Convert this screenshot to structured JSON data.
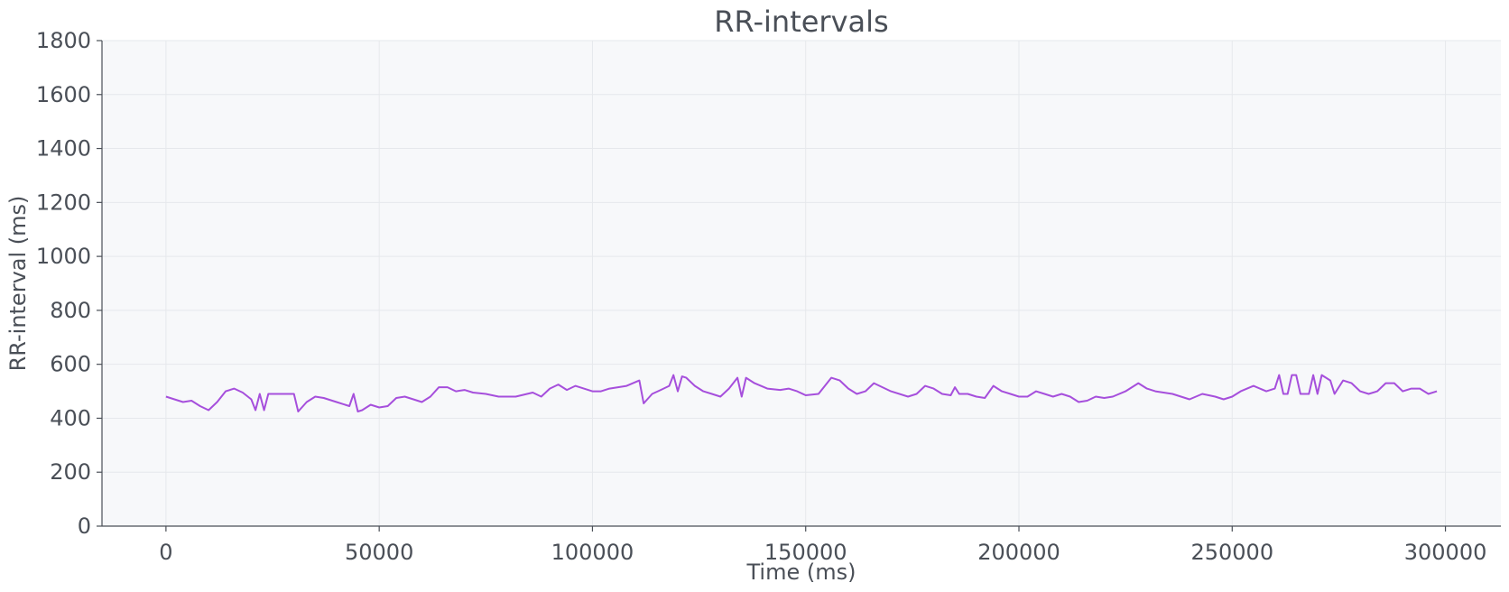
{
  "chart_data": {
    "type": "line",
    "title": "RR-intervals",
    "xlabel": "Time (ms)",
    "ylabel": "RR-interval (ms)",
    "xlim": [
      -15000,
      313000
    ],
    "ylim": [
      0,
      1800
    ],
    "xticks": [
      0,
      50000,
      100000,
      150000,
      200000,
      250000,
      300000
    ],
    "yticks": [
      0,
      200,
      400,
      600,
      800,
      1000,
      1200,
      1400,
      1600,
      1800
    ],
    "grid": true,
    "background": "#f7f8fa",
    "series": [
      {
        "color": "#a64fdc",
        "x": [
          0,
          2000,
          4000,
          6000,
          8000,
          10000,
          12000,
          14000,
          16000,
          18000,
          20000,
          21000,
          22000,
          23000,
          24000,
          25000,
          26000,
          28000,
          30000,
          31000,
          33000,
          35000,
          37000,
          40000,
          43000,
          44000,
          45000,
          46000,
          48000,
          50000,
          52000,
          54000,
          56000,
          58000,
          60000,
          62000,
          64000,
          66000,
          68000,
          70000,
          72000,
          75000,
          78000,
          82000,
          86000,
          88000,
          90000,
          92000,
          94000,
          96000,
          100000,
          102000,
          104000,
          108000,
          111000,
          112000,
          114000,
          116000,
          118000,
          119000,
          120000,
          121000,
          122000,
          124000,
          126000,
          128000,
          130000,
          132000,
          134000,
          135000,
          136000,
          138000,
          141000,
          144000,
          146000,
          148000,
          150000,
          153000,
          156000,
          158000,
          160000,
          162000,
          164000,
          166000,
          170000,
          174000,
          176000,
          178000,
          180000,
          182000,
          184000,
          185000,
          186000,
          188000,
          190000,
          192000,
          194000,
          196000,
          198000,
          200000,
          202000,
          204000,
          206000,
          208000,
          210000,
          212000,
          214000,
          216000,
          218000,
          220000,
          222000,
          225000,
          228000,
          230000,
          232000,
          236000,
          240000,
          243000,
          246000,
          248000,
          250000,
          252000,
          255000,
          258000,
          260000,
          261000,
          262000,
          263000,
          264000,
          265000,
          266000,
          268000,
          269000,
          270000,
          271000,
          272000,
          273000,
          274000,
          276000,
          278000,
          280000,
          282000,
          284000,
          286000,
          288000,
          290000,
          292000,
          294000,
          296000,
          298000
        ],
        "y": [
          480,
          470,
          460,
          465,
          445,
          430,
          460,
          500,
          510,
          495,
          470,
          430,
          490,
          430,
          490,
          490,
          490,
          490,
          490,
          425,
          460,
          480,
          475,
          460,
          445,
          490,
          425,
          430,
          450,
          440,
          445,
          475,
          480,
          470,
          460,
          480,
          515,
          515,
          500,
          505,
          495,
          490,
          480,
          480,
          495,
          480,
          510,
          525,
          505,
          520,
          500,
          500,
          510,
          520,
          540,
          455,
          490,
          505,
          520,
          560,
          500,
          555,
          550,
          520,
          500,
          490,
          480,
          510,
          550,
          480,
          550,
          530,
          510,
          505,
          510,
          500,
          485,
          490,
          550,
          540,
          510,
          490,
          500,
          530,
          500,
          480,
          490,
          520,
          510,
          490,
          485,
          515,
          490,
          490,
          480,
          475,
          520,
          500,
          490,
          480,
          480,
          500,
          490,
          480,
          490,
          480,
          460,
          465,
          480,
          475,
          480,
          500,
          530,
          510,
          500,
          490,
          470,
          490,
          480,
          470,
          480,
          500,
          520,
          500,
          510,
          560,
          490,
          490,
          560,
          560,
          490,
          490,
          560,
          490,
          560,
          550,
          540,
          490,
          540,
          530,
          500,
          490,
          500,
          530,
          530,
          500,
          510,
          510,
          490,
          500
        ]
      }
    ]
  }
}
